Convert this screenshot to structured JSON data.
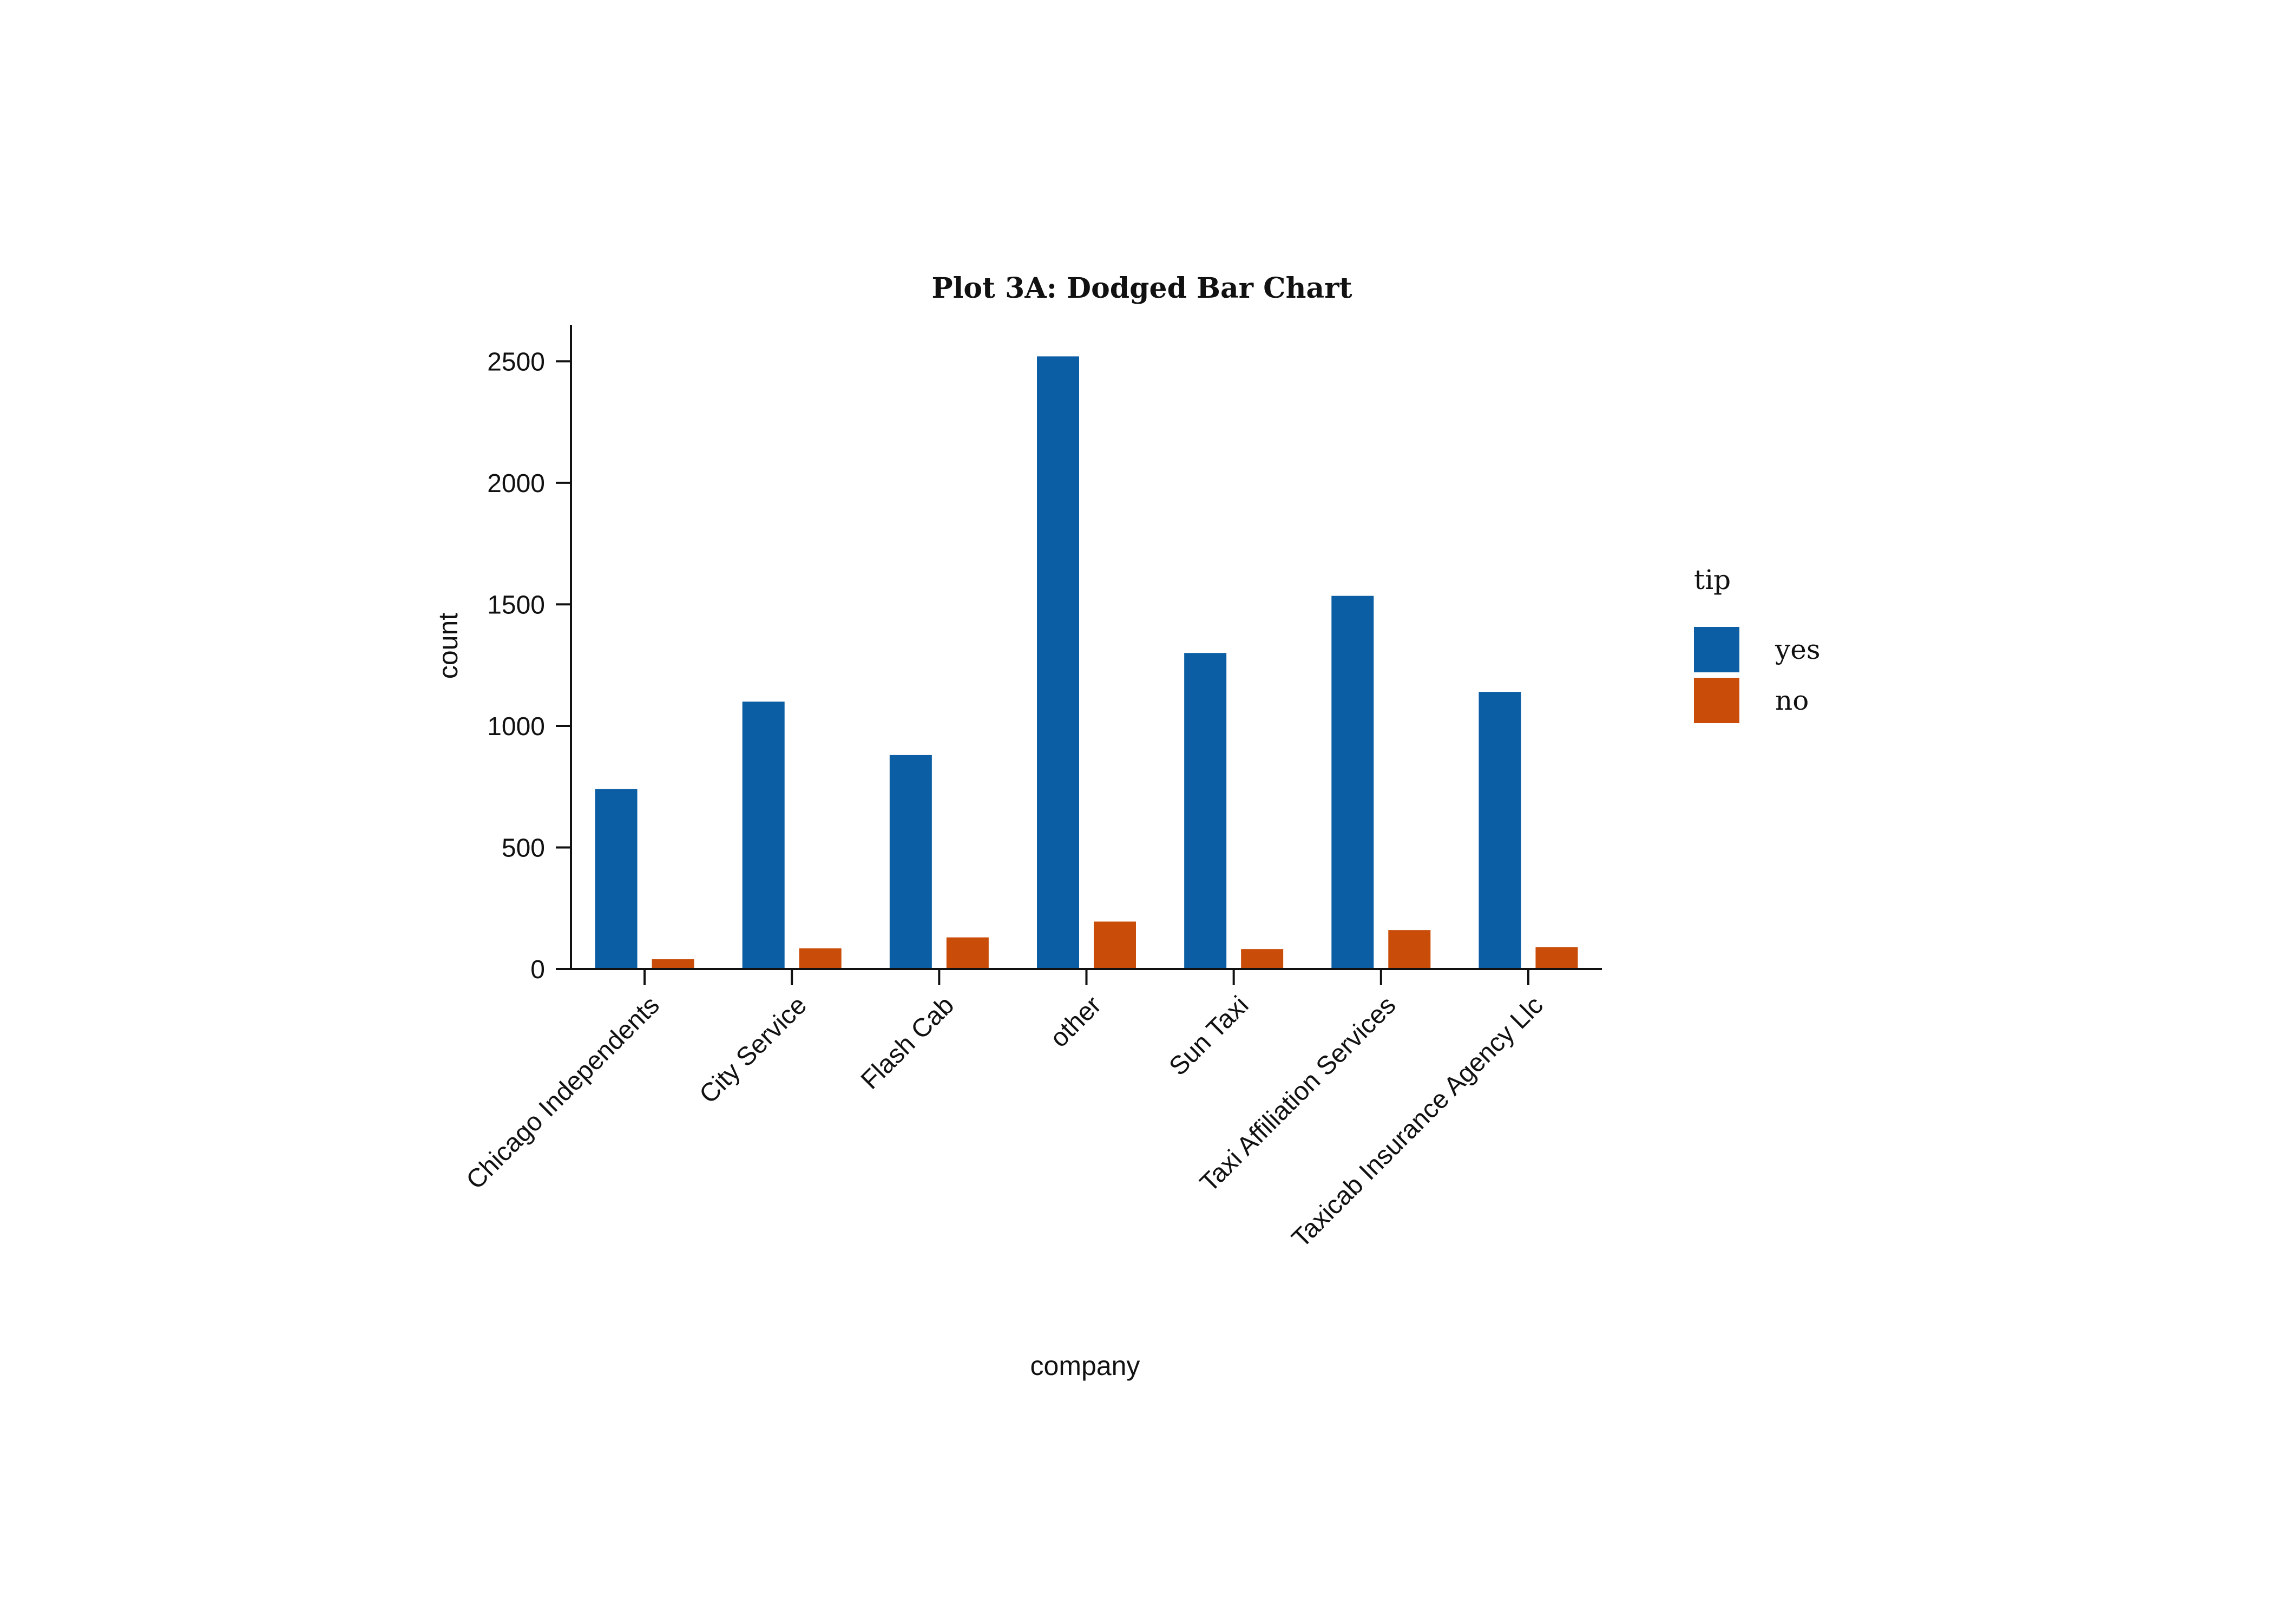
{
  "chart_data": {
    "type": "bar",
    "title": "Plot 3A: Dodged Bar Chart",
    "xlabel": "company",
    "ylabel": "count",
    "ylim": [
      0,
      2650
    ],
    "yticks": [
      0,
      500,
      1000,
      1500,
      2000,
      2500
    ],
    "yticklabels": [
      "0",
      "500",
      "1000",
      "1500",
      "2000",
      "2500"
    ],
    "categories": [
      "Chicago Independents",
      "City Service",
      "Flash Cab",
      "other",
      "Sun Taxi",
      "Taxi Affiliation Services",
      "Taxicab Insurance Agency Llc"
    ],
    "series": [
      {
        "name": "yes",
        "color": "#0b5ea3",
        "values": [
          740,
          1100,
          880,
          2520,
          1300,
          1535,
          1140
        ]
      },
      {
        "name": "no",
        "color": "#c94c09",
        "values": [
          40,
          85,
          130,
          195,
          82,
          160,
          90
        ]
      }
    ],
    "legend": {
      "title": "tip",
      "position": "right"
    },
    "grid": false
  }
}
